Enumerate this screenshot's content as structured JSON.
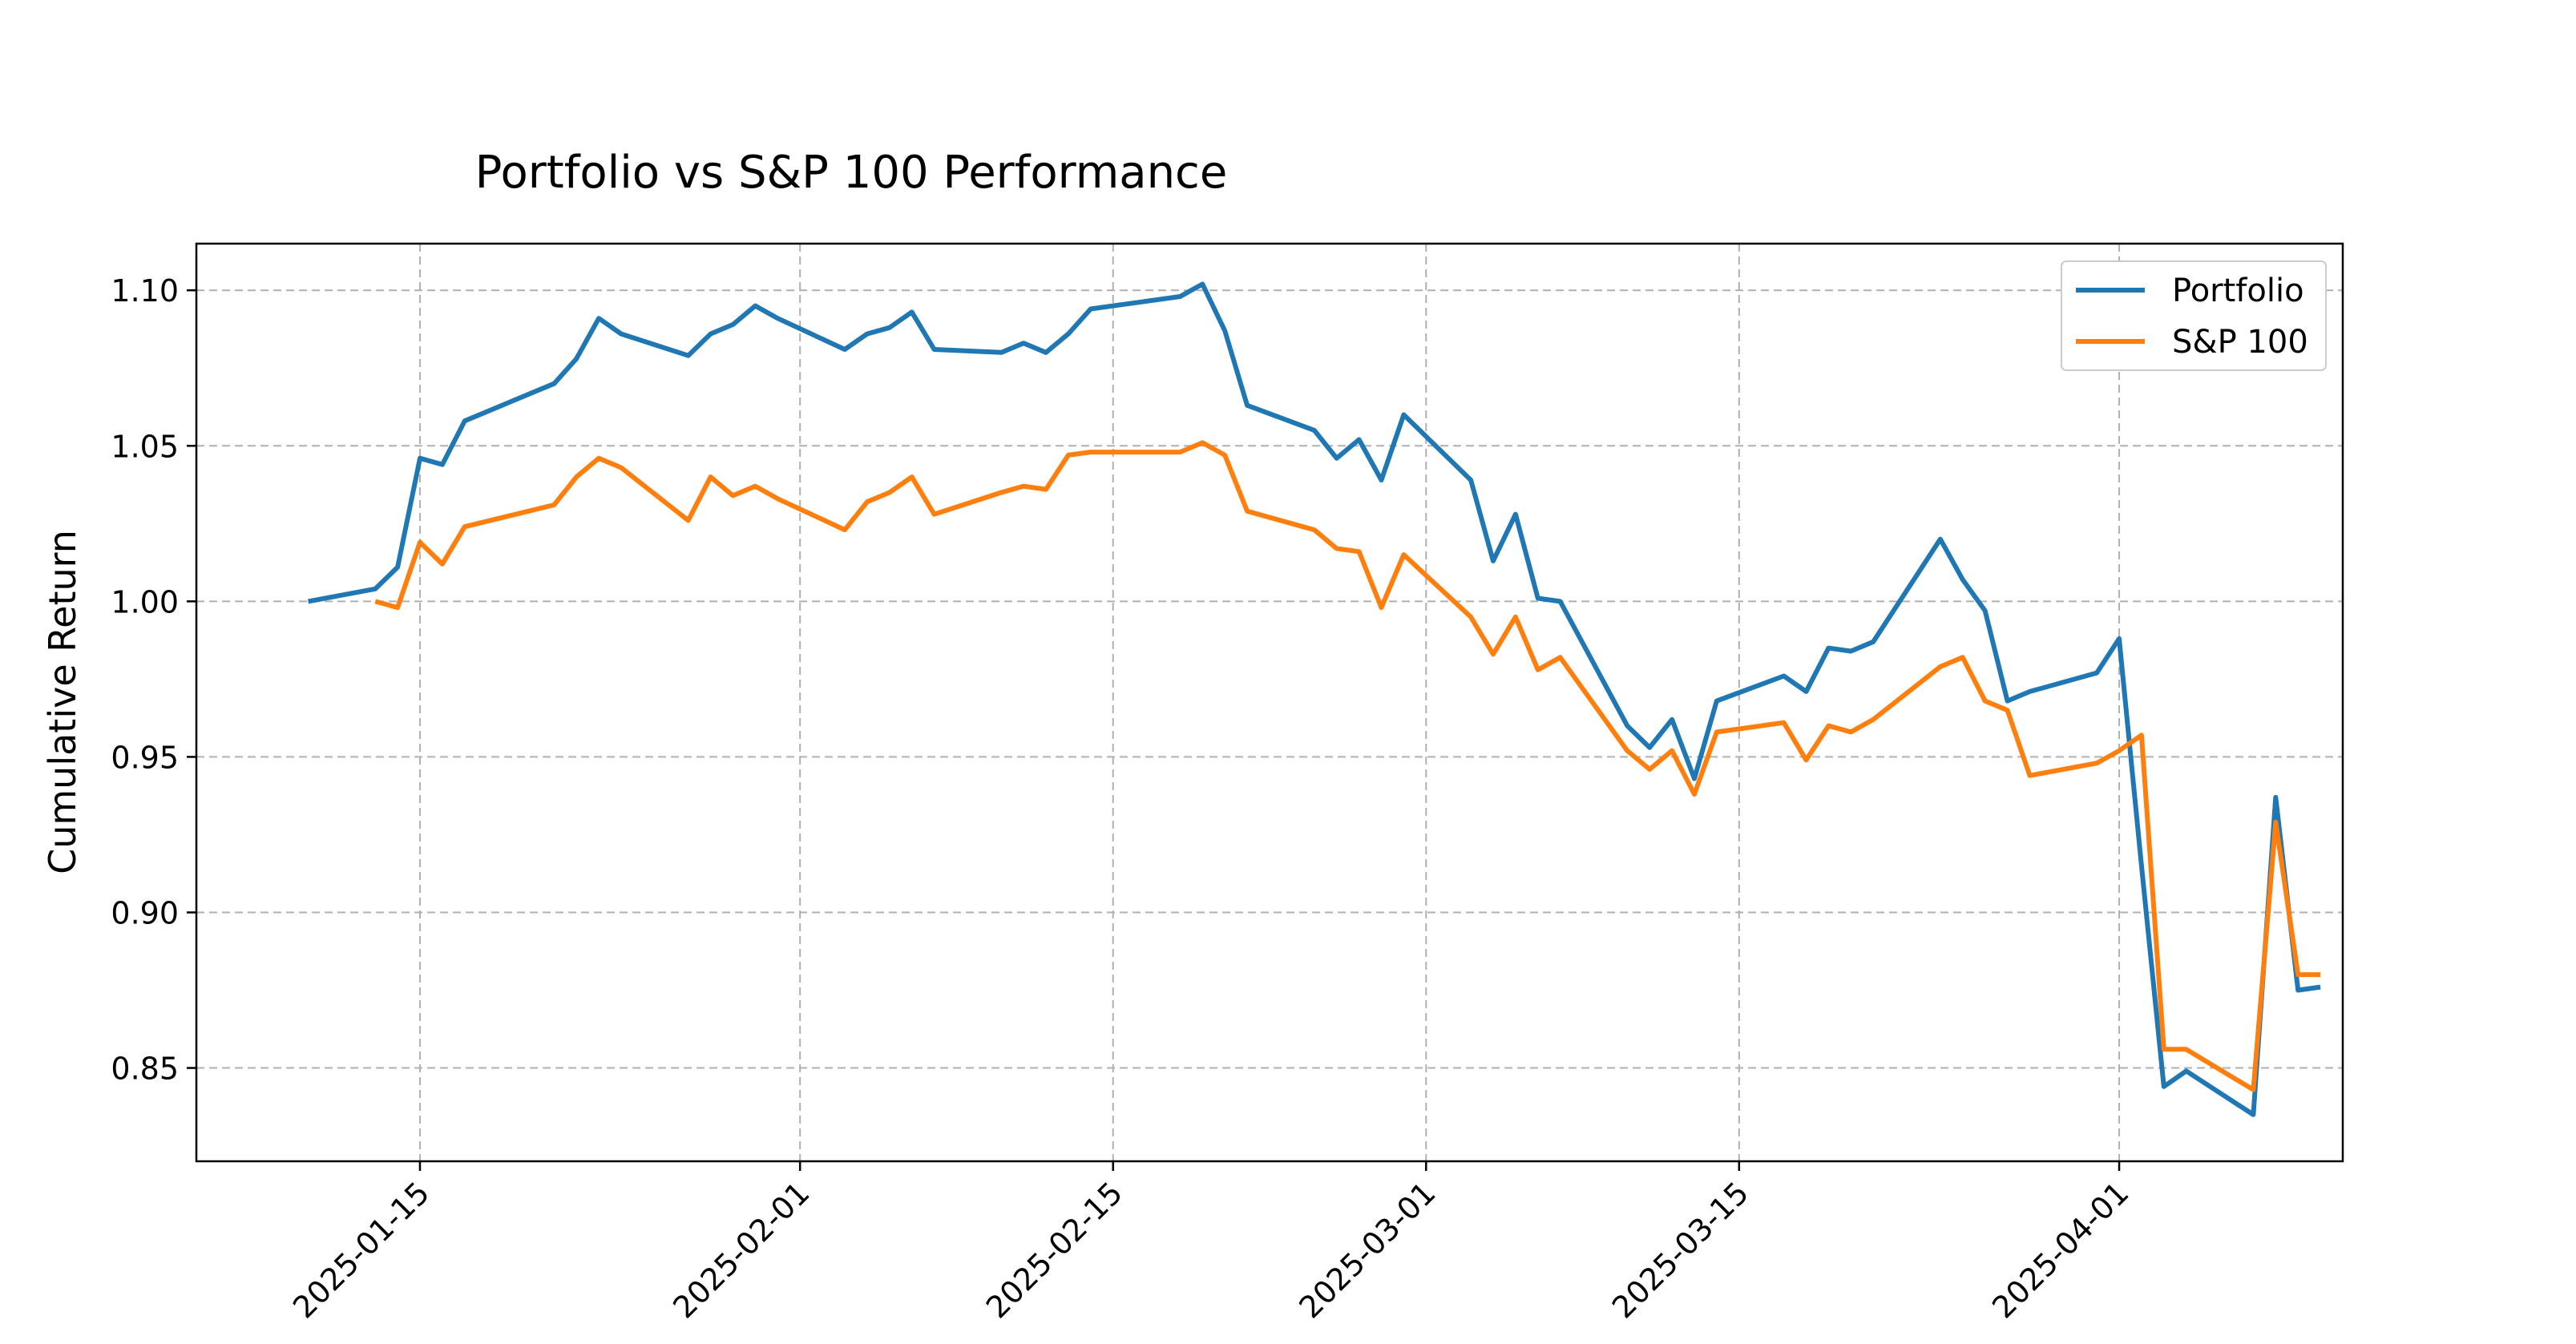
{
  "chart_data": {
    "type": "line",
    "title": "Portfolio vs S&P 100 Performance",
    "xlabel": "",
    "ylabel": "Cumulative Return",
    "x_axis_type": "date",
    "xlim": [
      "2025-01-05",
      "2025-04-11"
    ],
    "ylim": [
      0.82,
      1.115
    ],
    "x_ticks": [
      "2025-01-15",
      "2025-02-01",
      "2025-02-15",
      "2025-03-01",
      "2025-03-15",
      "2025-04-01"
    ],
    "y_ticks": [
      0.85,
      0.9,
      0.95,
      1.0,
      1.05,
      1.1
    ],
    "y_tick_labels": [
      "0.85",
      "0.90",
      "0.95",
      "1.00",
      "1.05",
      "1.10"
    ],
    "grid": true,
    "legend_position": "top-right",
    "series": [
      {
        "name": "Portfolio",
        "color": "#1f77b4",
        "x": [
          "2025-01-10",
          "2025-01-13",
          "2025-01-14",
          "2025-01-15",
          "2025-01-16",
          "2025-01-17",
          "2025-01-21",
          "2025-01-22",
          "2025-01-23",
          "2025-01-24",
          "2025-01-27",
          "2025-01-28",
          "2025-01-29",
          "2025-01-30",
          "2025-01-31",
          "2025-02-03",
          "2025-02-04",
          "2025-02-05",
          "2025-02-06",
          "2025-02-07",
          "2025-02-10",
          "2025-02-11",
          "2025-02-12",
          "2025-02-13",
          "2025-02-14",
          "2025-02-18",
          "2025-02-19",
          "2025-02-20",
          "2025-02-21",
          "2025-02-24",
          "2025-02-25",
          "2025-02-26",
          "2025-02-27",
          "2025-02-28",
          "2025-03-03",
          "2025-03-04",
          "2025-03-05",
          "2025-03-06",
          "2025-03-07",
          "2025-03-10",
          "2025-03-11",
          "2025-03-12",
          "2025-03-13",
          "2025-03-14",
          "2025-03-17",
          "2025-03-18",
          "2025-03-19",
          "2025-03-20",
          "2025-03-21",
          "2025-03-24",
          "2025-03-25",
          "2025-03-26",
          "2025-03-27",
          "2025-03-28",
          "2025-03-31",
          "2025-04-01",
          "2025-04-02",
          "2025-04-03",
          "2025-04-04",
          "2025-04-07",
          "2025-04-08",
          "2025-04-09",
          "2025-04-10"
        ],
        "values": [
          1.0,
          1.004,
          1.011,
          1.046,
          1.044,
          1.058,
          1.07,
          1.078,
          1.091,
          1.086,
          1.079,
          1.086,
          1.089,
          1.095,
          1.091,
          1.081,
          1.086,
          1.088,
          1.093,
          1.081,
          1.08,
          1.083,
          1.08,
          1.086,
          1.094,
          1.098,
          1.102,
          1.087,
          1.063,
          1.055,
          1.046,
          1.052,
          1.039,
          1.06,
          1.039,
          1.013,
          1.028,
          1.001,
          1.0,
          0.96,
          0.953,
          0.962,
          0.943,
          0.968,
          0.976,
          0.971,
          0.985,
          0.984,
          0.987,
          1.02,
          1.007,
          0.997,
          0.968,
          0.971,
          0.977,
          0.988,
          0.915,
          0.844,
          0.849,
          0.835,
          0.937,
          0.875,
          0.876
        ]
      },
      {
        "name": "S&P 100",
        "color": "#ff7f0e",
        "x": [
          "2025-01-13",
          "2025-01-14",
          "2025-01-15",
          "2025-01-16",
          "2025-01-17",
          "2025-01-21",
          "2025-01-22",
          "2025-01-23",
          "2025-01-24",
          "2025-01-27",
          "2025-01-28",
          "2025-01-29",
          "2025-01-30",
          "2025-01-31",
          "2025-02-03",
          "2025-02-04",
          "2025-02-05",
          "2025-02-06",
          "2025-02-07",
          "2025-02-10",
          "2025-02-11",
          "2025-02-12",
          "2025-02-13",
          "2025-02-14",
          "2025-02-18",
          "2025-02-19",
          "2025-02-20",
          "2025-02-21",
          "2025-02-24",
          "2025-02-25",
          "2025-02-26",
          "2025-02-27",
          "2025-02-28",
          "2025-03-03",
          "2025-03-04",
          "2025-03-05",
          "2025-03-06",
          "2025-03-07",
          "2025-03-10",
          "2025-03-11",
          "2025-03-12",
          "2025-03-13",
          "2025-03-14",
          "2025-03-17",
          "2025-03-18",
          "2025-03-19",
          "2025-03-20",
          "2025-03-21",
          "2025-03-24",
          "2025-03-25",
          "2025-03-26",
          "2025-03-27",
          "2025-03-28",
          "2025-03-31",
          "2025-04-01",
          "2025-04-02",
          "2025-04-03",
          "2025-04-04",
          "2025-04-07",
          "2025-04-08",
          "2025-04-09",
          "2025-04-10"
        ],
        "values": [
          1.0,
          0.998,
          1.019,
          1.012,
          1.024,
          1.031,
          1.04,
          1.046,
          1.043,
          1.026,
          1.04,
          1.034,
          1.037,
          1.033,
          1.023,
          1.032,
          1.035,
          1.04,
          1.028,
          1.035,
          1.037,
          1.036,
          1.047,
          1.048,
          1.048,
          1.051,
          1.047,
          1.029,
          1.023,
          1.017,
          1.016,
          0.998,
          1.015,
          0.995,
          0.983,
          0.995,
          0.978,
          0.982,
          0.952,
          0.946,
          0.952,
          0.938,
          0.958,
          0.961,
          0.949,
          0.96,
          0.958,
          0.962,
          0.979,
          0.982,
          0.968,
          0.965,
          0.944,
          0.948,
          0.952,
          0.957,
          0.856,
          0.856,
          0.843,
          0.929,
          0.88,
          0.88
        ]
      }
    ]
  }
}
